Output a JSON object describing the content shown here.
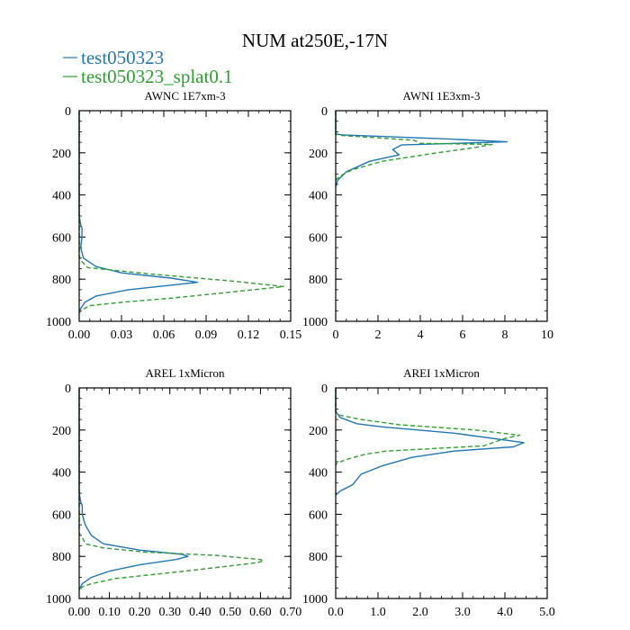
{
  "figure": {
    "title": "NUM at250E,-17N",
    "legend": [
      {
        "label": "test050323",
        "color": "#1f77b4",
        "dash": "solid"
      },
      {
        "label": "test050323_splat0.1",
        "color": "#2ca02c",
        "dash": "dashed"
      }
    ]
  },
  "chart_data": [
    {
      "type": "line",
      "title": "AWNC  1E7xm-3",
      "xlim": [
        0,
        0.15
      ],
      "ylim": [
        1000,
        0
      ],
      "xticks": [
        "0.00",
        "0.03",
        "0.06",
        "0.09",
        "0.12",
        "0.15"
      ],
      "xtick_values": [
        0,
        0.03,
        0.06,
        0.09,
        0.12,
        0.15
      ],
      "yticks": [
        "0",
        "200",
        "400",
        "600",
        "800",
        "1000"
      ],
      "ytick_values": [
        0,
        200,
        400,
        600,
        800,
        1000
      ],
      "series": [
        {
          "name": "test050323",
          "x": [
            0,
            0,
            0.001,
            0.002,
            0.002,
            0.001,
            0.003,
            0.012,
            0.03,
            0.065,
            0.084,
            0.035,
            0.012,
            0.004,
            0.001,
            0.0
          ],
          "y": [
            0,
            500,
            540,
            560,
            600,
            650,
            700,
            740,
            770,
            795,
            815,
            850,
            880,
            910,
            940,
            960
          ]
        },
        {
          "name": "test050323_splat0.1",
          "x": [
            0,
            0,
            0.0,
            0.001,
            0.006,
            0.05,
            0.11,
            0.145,
            0.095,
            0.065,
            0.03,
            0.008,
            0.002,
            0.0
          ],
          "y": [
            0,
            600,
            690,
            710,
            745,
            775,
            810,
            835,
            870,
            890,
            910,
            925,
            945,
            960
          ]
        }
      ]
    },
    {
      "type": "line",
      "title": "AWNI  1E3xm-3",
      "xlim": [
        0,
        10
      ],
      "ylim": [
        1000,
        0
      ],
      "xticks": [
        "0",
        "2",
        "4",
        "6",
        "8",
        "10"
      ],
      "xtick_values": [
        0,
        2,
        4,
        6,
        8,
        10
      ],
      "yticks": [
        "0",
        "200",
        "400",
        "600",
        "800",
        "1000"
      ],
      "ytick_values": [
        0,
        200,
        400,
        600,
        800,
        1000
      ],
      "series": [
        {
          "name": "test050323",
          "x": [
            0,
            0,
            0.3,
            5.5,
            8.1,
            3.1,
            2.7,
            3.0,
            1.6,
            0.5,
            0.1,
            0.0
          ],
          "y": [
            0,
            110,
            115,
            135,
            148,
            163,
            185,
            210,
            240,
            290,
            330,
            360
          ]
        },
        {
          "name": "test050323_splat0.1",
          "x": [
            0,
            0,
            0.2,
            3.7,
            4.0,
            7.4,
            6.6,
            4.8,
            2.2,
            0.8,
            0.2,
            0.0
          ],
          "y": [
            0,
            110,
            117,
            140,
            155,
            160,
            175,
            200,
            240,
            280,
            310,
            330
          ]
        }
      ]
    },
    {
      "type": "line",
      "title": "AREL  1xMicron",
      "xlim": [
        0,
        0.7
      ],
      "ylim": [
        1000,
        0
      ],
      "xticks": [
        "0.00",
        "0.10",
        "0.20",
        "0.30",
        "0.40",
        "0.50",
        "0.60",
        "0.70"
      ],
      "xtick_values": [
        0,
        0.1,
        0.2,
        0.3,
        0.4,
        0.5,
        0.6,
        0.7
      ],
      "yticks": [
        "0",
        "200",
        "400",
        "600",
        "800",
        "1000"
      ],
      "ytick_values": [
        0,
        200,
        400,
        600,
        800,
        1000
      ],
      "series": [
        {
          "name": "test050323",
          "x": [
            0,
            0,
            0.005,
            0.01,
            0.01,
            0.02,
            0.04,
            0.08,
            0.2,
            0.34,
            0.36,
            0.32,
            0.2,
            0.1,
            0.04,
            0.01,
            0.0
          ],
          "y": [
            0,
            500,
            540,
            560,
            600,
            650,
            700,
            740,
            770,
            790,
            800,
            815,
            840,
            870,
            900,
            930,
            960
          ]
        },
        {
          "name": "test050323_splat0.1",
          "x": [
            0,
            0,
            0.0,
            0.01,
            0.02,
            0.08,
            0.22,
            0.45,
            0.6,
            0.61,
            0.59,
            0.35,
            0.12,
            0.04,
            0.01,
            0.0
          ],
          "y": [
            0,
            600,
            690,
            710,
            740,
            760,
            780,
            795,
            815,
            820,
            830,
            870,
            905,
            930,
            945,
            960
          ]
        }
      ]
    },
    {
      "type": "line",
      "title": "AREI  1xMicron",
      "xlim": [
        0,
        5.0
      ],
      "ylim": [
        1000,
        0
      ],
      "xticks": [
        "0.0",
        "1.0",
        "2.0",
        "3.0",
        "4.0",
        "5.0"
      ],
      "xtick_values": [
        0,
        1,
        2,
        3,
        4,
        5
      ],
      "yticks": [
        "0",
        "200",
        "400",
        "600",
        "800",
        "1000"
      ],
      "ytick_values": [
        0,
        200,
        400,
        600,
        800,
        1000
      ],
      "series": [
        {
          "name": "test050323",
          "x": [
            0,
            0,
            0.1,
            0.5,
            1.1,
            2.8,
            4.45,
            4.2,
            2.8,
            1.8,
            1.1,
            0.6,
            0.4,
            0.1,
            0.0
          ],
          "y": [
            0,
            110,
            140,
            170,
            185,
            215,
            260,
            280,
            300,
            330,
            370,
            410,
            460,
            490,
            510
          ]
        },
        {
          "name": "test050323_splat0.1",
          "x": [
            0,
            0,
            0.1,
            0.6,
            1.5,
            3.3,
            4.35,
            4.0,
            3.5,
            1.2,
            0.7,
            0.25,
            0.05,
            0.0
          ],
          "y": [
            0,
            115,
            130,
            150,
            175,
            200,
            225,
            240,
            275,
            300,
            315,
            340,
            355,
            365
          ]
        }
      ]
    }
  ]
}
